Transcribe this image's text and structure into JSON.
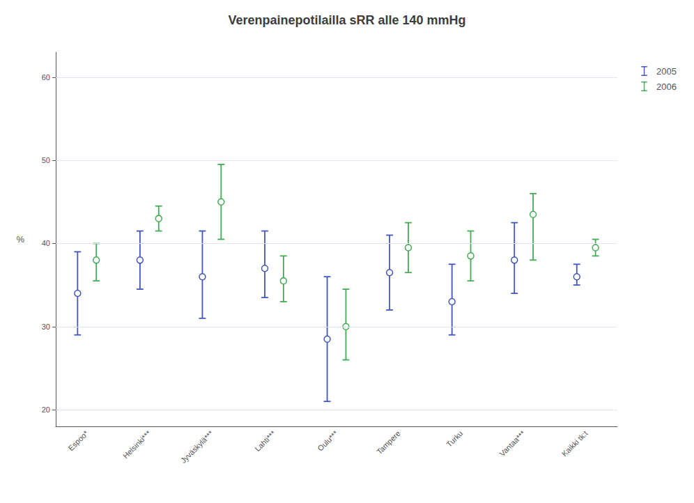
{
  "chart_data": {
    "type": "scatter",
    "title": "Verenpainepotilailla sRR alle 140 mmHg",
    "ylabel": "%",
    "categories": [
      "Espoo*",
      "Helsinki***",
      "Jyväskylä***",
      "Lahti***",
      "Oulu***",
      "Tampere",
      "Turku",
      "Vantaa***",
      "Kaikki tk:t"
    ],
    "series": [
      {
        "name": "2005",
        "color": "#4455bb",
        "marker": "circle",
        "values": [
          34.0,
          38.0,
          36.0,
          37.0,
          28.5,
          36.5,
          33.0,
          38.0,
          36.0
        ],
        "lower": [
          29.0,
          34.5,
          31.0,
          33.5,
          21.0,
          32.0,
          29.0,
          34.0,
          35.0
        ],
        "upper": [
          39.0,
          41.5,
          41.5,
          41.5,
          36.0,
          41.0,
          37.5,
          42.5,
          37.5
        ]
      },
      {
        "name": "2006",
        "color": "#44aa55",
        "marker": "circle",
        "values": [
          38.0,
          43.0,
          45.0,
          35.5,
          30.0,
          39.5,
          38.5,
          43.5,
          39.5
        ],
        "lower": [
          35.5,
          41.5,
          40.5,
          33.0,
          26.0,
          36.5,
          35.5,
          38.0,
          38.5
        ],
        "upper": [
          40.0,
          44.5,
          49.5,
          38.5,
          34.5,
          42.5,
          41.5,
          46.0,
          40.5
        ]
      }
    ],
    "ylim": [
      18,
      63
    ],
    "yticks": [
      20,
      30,
      40,
      50,
      60
    ],
    "grid": true,
    "legend": "right"
  }
}
